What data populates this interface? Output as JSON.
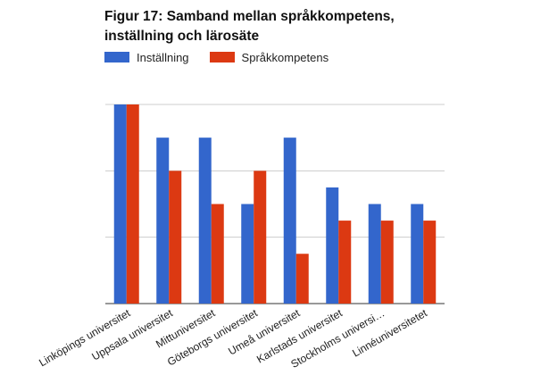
{
  "chart_data": {
    "type": "bar",
    "title": "Figur 17: Samband mellan språkkompetens,\ninställning och lärosäte",
    "categories": [
      "Linköpings universitet",
      "Uppsala universitet",
      "Mittuniversitet",
      "Göteborgs universitet",
      "Umeå universitet",
      "Karlstads universitet",
      "Stockholms universi…",
      "Linnéuniversitetet"
    ],
    "series": [
      {
        "name": "Inställning",
        "color": "#3366cc",
        "values": [
          3,
          2.5,
          2.5,
          1.5,
          2.5,
          1.75,
          1.5,
          1.5
        ]
      },
      {
        "name": "Språkkompetens",
        "color": "#dc3912",
        "values": [
          3,
          2,
          1.5,
          2,
          0.75,
          1.25,
          1.25,
          1.25
        ]
      }
    ],
    "ylim": [
      0,
      3
    ],
    "grid": true,
    "legend_position": "top-left"
  }
}
